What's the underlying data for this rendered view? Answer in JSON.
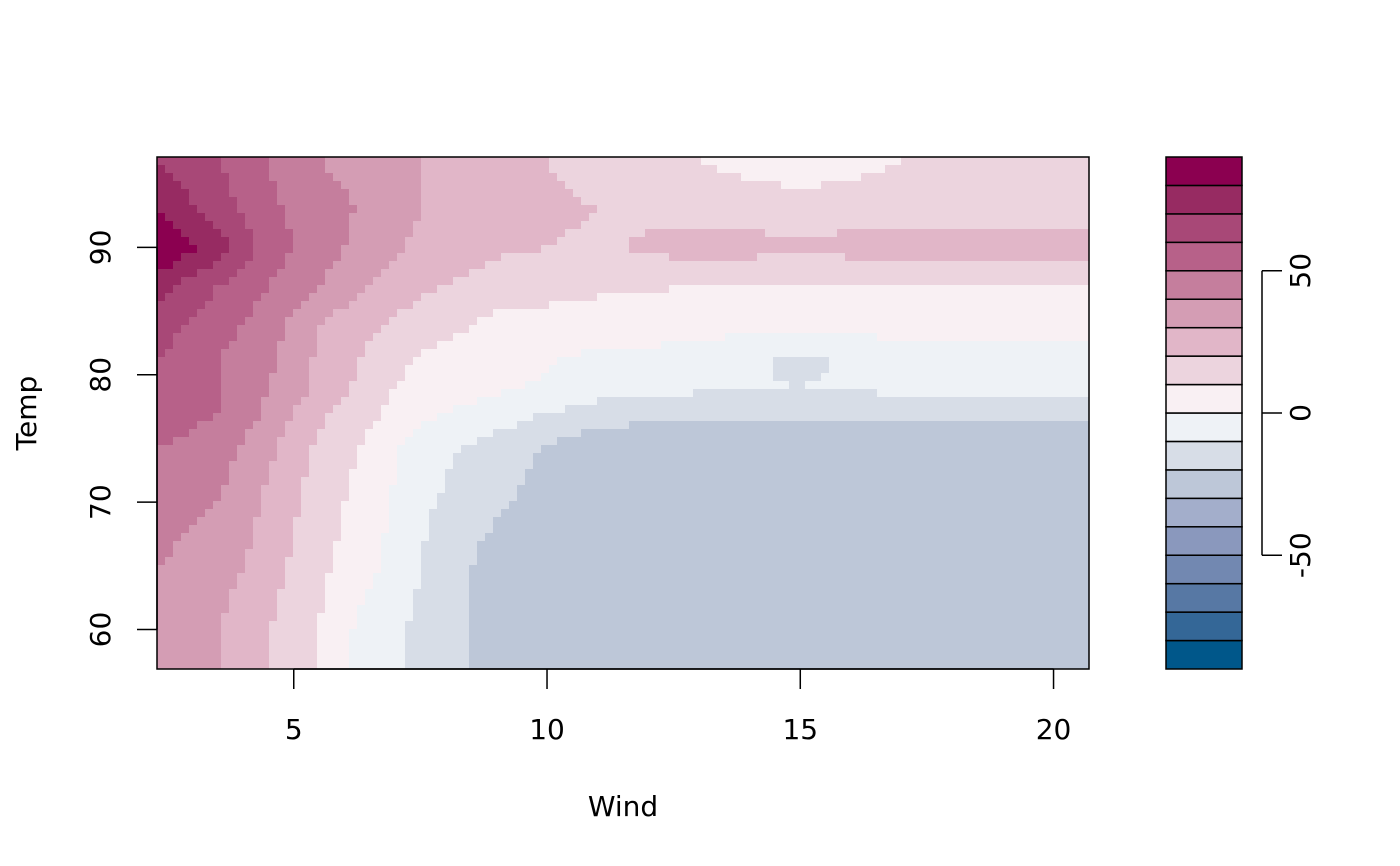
{
  "chart_data": {
    "type": "heatmap",
    "title": "",
    "xlabel": "Wind",
    "ylabel": "Temp",
    "xlim": [
      2.3,
      20.7
    ],
    "ylim": [
      56.9,
      97.1
    ],
    "x_ticks": [
      5,
      10,
      15,
      20
    ],
    "y_ticks": [
      60,
      70,
      80,
      90
    ],
    "x_tick_labels": [
      "5",
      "10",
      "15",
      "20"
    ],
    "y_tick_labels": [
      "60",
      "70",
      "80",
      "90"
    ],
    "grid": false,
    "legend_position": "right",
    "colorbar": {
      "breaks": [
        -90,
        -80,
        -70,
        -60,
        -50,
        -40,
        -30,
        -20,
        -10,
        0,
        10,
        20,
        30,
        40,
        50,
        60,
        70,
        80,
        90
      ],
      "colors": [
        "#00578a",
        "#346797",
        "#5778a4",
        "#7288b1",
        "#8a98bd",
        "#a3aecb",
        "#bdc7d8",
        "#d7dde7",
        "#eef2f6",
        "#f9f0f3",
        "#ecd4de",
        "#e1b6c8",
        "#d49db4",
        "#c57e9d",
        "#b76189",
        "#a84877",
        "#972b62",
        "#8b0050"
      ],
      "tick_values": [
        -50,
        0,
        50
      ],
      "tick_labels": [
        "-50",
        "0",
        "50"
      ]
    },
    "grid_x": [
      2.3,
      3.5,
      4.5,
      5.5,
      6.5,
      7.5,
      9,
      11,
      13,
      15,
      17,
      20.7
    ],
    "grid_y": [
      57,
      60,
      65,
      70,
      74,
      77,
      79,
      81,
      84,
      87,
      90,
      93,
      97
    ],
    "z": [
      [
        40,
        30,
        20,
        10,
        -5,
        -12,
        -25,
        -30,
        -30,
        -30,
        -30,
        -30
      ],
      [
        40,
        30,
        20,
        10,
        -5,
        -12,
        -25,
        -30,
        -30,
        -30,
        -30,
        -30
      ],
      [
        40,
        35,
        25,
        12,
        3,
        -10,
        -25,
        -30,
        -30,
        -30,
        -30,
        -30
      ],
      [
        45,
        40,
        28,
        15,
        5,
        -8,
        -18,
        -30,
        -30,
        -30,
        -30,
        -30
      ],
      [
        50,
        45,
        32,
        18,
        7,
        -5,
        -15,
        -28,
        -30,
        -30,
        -30,
        -30
      ],
      [
        55,
        50,
        38,
        22,
        12,
        3,
        -5,
        -15,
        -18,
        -18,
        -18,
        -18
      ],
      [
        58,
        50,
        40,
        28,
        15,
        5,
        2,
        -5,
        -8,
        -10,
        -7,
        -5
      ],
      [
        60,
        50,
        42,
        28,
        18,
        8,
        4,
        -3,
        -3,
        -13,
        -3,
        -3
      ],
      [
        65,
        55,
        45,
        30,
        22,
        15,
        8,
        5,
        3,
        3,
        3,
        3
      ],
      [
        75,
        60,
        50,
        40,
        30,
        22,
        15,
        12,
        10,
        10,
        10,
        10
      ],
      [
        90,
        75,
        55,
        45,
        35,
        28,
        22,
        18,
        25,
        22,
        25,
        25
      ],
      [
        80,
        65,
        52,
        45,
        38,
        30,
        25,
        20,
        15,
        15,
        15,
        15
      ],
      [
        70,
        60,
        50,
        40,
        35,
        30,
        25,
        15,
        10,
        3,
        10,
        10
      ]
    ]
  }
}
